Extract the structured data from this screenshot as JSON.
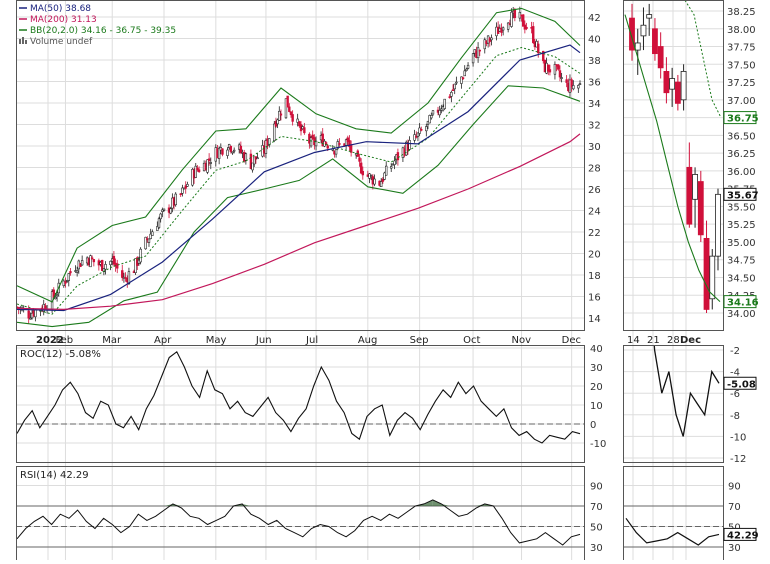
{
  "colors": {
    "ma50": "#1a237e",
    "ma200": "#c2185b",
    "bb": "#1b7a1b",
    "up": "#222222",
    "down": "#d0103a",
    "grid": "#dddddd",
    "rsi_fill": "#3f6b3f"
  },
  "main": {
    "legend": {
      "ma50": "MA(50) 38.68",
      "ma200": "MA(200) 31.13",
      "bb": "BB(20,2.0) 34.16 - 36.75 - 39.35",
      "volume": "Volume undef"
    },
    "year_label": "2022",
    "months": [
      "Feb",
      "Mar",
      "Apr",
      "May",
      "Jun",
      "Jul",
      "Aug",
      "Sep",
      "Oct",
      "Nov",
      "Dec"
    ],
    "y_ticks": [
      "14",
      "16",
      "18",
      "20",
      "22",
      "24",
      "26",
      "28",
      "30",
      "32",
      "34",
      "36",
      "38",
      "40",
      "42"
    ]
  },
  "zoom": {
    "y_ticks": [
      "34.00",
      "34.25",
      "34.50",
      "34.75",
      "35.00",
      "35.25",
      "35.50",
      "35.75",
      "36.00",
      "36.25",
      "36.50",
      "36.75",
      "37.00",
      "37.25",
      "37.50",
      "37.75",
      "38.00",
      "38.25"
    ],
    "x_labels": [
      "14",
      "21",
      "28",
      "Dec"
    ],
    "price_tag": "35.67",
    "ma_tag": "36.75",
    "bb_tag": "34.16"
  },
  "roc": {
    "label": "ROC(12) -5.08%",
    "y_ticks": [
      "40",
      "30",
      "20",
      "10",
      "0",
      "-10"
    ],
    "zoom_y_ticks": [
      "-2",
      "-4",
      "-6",
      "-8",
      "-10",
      "-12"
    ],
    "zoom_tag": "-5.08"
  },
  "rsi": {
    "label": "RSI(14) 42.29",
    "y_ticks": [
      "90",
      "70",
      "50",
      "30"
    ],
    "zoom_tag": "42.29"
  },
  "chart_data": [
    {
      "type": "candlestick",
      "x_range": [
        "2022-01-03",
        "2022-12-06"
      ],
      "ylim": [
        13,
        43
      ],
      "close_path": [
        [
          "2022-01-03",
          15.0
        ],
        [
          "2022-01-10",
          14.4
        ],
        [
          "2022-01-18",
          15.0
        ],
        [
          "2022-01-25",
          16.0
        ],
        [
          "2022-02-01",
          17.6
        ],
        [
          "2022-02-07",
          18.9
        ],
        [
          "2022-02-14",
          19.6
        ],
        [
          "2022-02-22",
          18.9
        ],
        [
          "2022-03-01",
          19.3
        ],
        [
          "2022-03-08",
          17.6
        ],
        [
          "2022-03-14",
          18.6
        ],
        [
          "2022-03-21",
          21.0
        ],
        [
          "2022-03-28",
          23.0
        ],
        [
          "2022-04-04",
          24.3
        ],
        [
          "2022-04-11",
          25.4
        ],
        [
          "2022-04-19",
          27.6
        ],
        [
          "2022-04-26",
          28.4
        ],
        [
          "2022-05-02",
          29.4
        ],
        [
          "2022-05-09",
          30.2
        ],
        [
          "2022-05-16",
          29.6
        ],
        [
          "2022-05-23",
          28.4
        ],
        [
          "2022-05-31",
          29.6
        ],
        [
          "2022-06-06",
          32.2
        ],
        [
          "2022-06-13",
          34.2
        ],
        [
          "2022-06-21",
          31.6
        ],
        [
          "2022-06-28",
          30.2
        ],
        [
          "2022-07-05",
          30.6
        ],
        [
          "2022-07-12",
          29.8
        ],
        [
          "2022-07-19",
          30.4
        ],
        [
          "2022-07-26",
          28.4
        ],
        [
          "2022-08-01",
          27.2
        ],
        [
          "2022-08-08",
          26.6
        ],
        [
          "2022-08-15",
          28.2
        ],
        [
          "2022-08-22",
          29.6
        ],
        [
          "2022-08-29",
          30.6
        ],
        [
          "2022-09-06",
          32.0
        ],
        [
          "2022-09-12",
          33.4
        ],
        [
          "2022-09-19",
          34.8
        ],
        [
          "2022-09-26",
          36.4
        ],
        [
          "2022-10-03",
          38.4
        ],
        [
          "2022-10-10",
          39.4
        ],
        [
          "2022-10-17",
          40.6
        ],
        [
          "2022-10-24",
          42.0
        ],
        [
          "2022-10-31",
          41.8
        ],
        [
          "2022-11-07",
          40.6
        ],
        [
          "2022-11-14",
          37.4
        ],
        [
          "2022-11-21",
          37.0
        ],
        [
          "2022-11-28",
          35.6
        ],
        [
          "2022-12-06",
          35.67
        ]
      ],
      "ma50_path": [
        [
          "2022-01-03",
          14.8
        ],
        [
          "2022-01-31",
          14.7
        ],
        [
          "2022-02-28",
          16.2
        ],
        [
          "2022-03-31",
          19.2
        ],
        [
          "2022-04-30",
          23.2
        ],
        [
          "2022-05-31",
          27.6
        ],
        [
          "2022-06-30",
          29.4
        ],
        [
          "2022-07-31",
          30.4
        ],
        [
          "2022-08-31",
          30.2
        ],
        [
          "2022-09-30",
          33.2
        ],
        [
          "2022-10-31",
          38.0
        ],
        [
          "2022-11-30",
          39.4
        ],
        [
          "2022-12-06",
          38.68
        ]
      ],
      "ma200_path": [
        [
          "2022-01-03",
          14.9
        ],
        [
          "2022-01-31",
          14.8
        ],
        [
          "2022-02-28",
          15.1
        ],
        [
          "2022-03-31",
          15.7
        ],
        [
          "2022-04-30",
          17.2
        ],
        [
          "2022-05-31",
          19.0
        ],
        [
          "2022-06-30",
          21.0
        ],
        [
          "2022-07-31",
          22.6
        ],
        [
          "2022-08-31",
          24.2
        ],
        [
          "2022-09-30",
          26.0
        ],
        [
          "2022-10-31",
          28.1
        ],
        [
          "2022-11-30",
          30.4
        ],
        [
          "2022-12-06",
          31.13
        ]
      ],
      "bb_upper_path": [
        [
          "2022-01-03",
          17.0
        ],
        [
          "2022-01-24",
          15.5
        ],
        [
          "2022-02-08",
          20.5
        ],
        [
          "2022-03-01",
          22.6
        ],
        [
          "2022-03-21",
          23.4
        ],
        [
          "2022-04-12",
          27.8
        ],
        [
          "2022-05-02",
          31.4
        ],
        [
          "2022-05-20",
          31.6
        ],
        [
          "2022-06-10",
          35.4
        ],
        [
          "2022-07-01",
          33.0
        ],
        [
          "2022-07-25",
          31.6
        ],
        [
          "2022-08-15",
          31.2
        ],
        [
          "2022-09-06",
          34.0
        ],
        [
          "2022-09-26",
          38.2
        ],
        [
          "2022-10-17",
          42.4
        ],
        [
          "2022-11-01",
          42.8
        ],
        [
          "2022-11-21",
          41.6
        ],
        [
          "2022-12-06",
          39.35
        ]
      ],
      "bb_lower_path": [
        [
          "2022-01-03",
          13.6
        ],
        [
          "2022-01-24",
          13.2
        ],
        [
          "2022-02-15",
          13.6
        ],
        [
          "2022-03-08",
          15.6
        ],
        [
          "2022-03-28",
          16.4
        ],
        [
          "2022-04-19",
          22.0
        ],
        [
          "2022-05-09",
          25.2
        ],
        [
          "2022-05-31",
          26.0
        ],
        [
          "2022-06-21",
          26.8
        ],
        [
          "2022-07-11",
          28.8
        ],
        [
          "2022-08-01",
          26.2
        ],
        [
          "2022-08-22",
          25.6
        ],
        [
          "2022-09-12",
          28.2
        ],
        [
          "2022-10-03",
          32.0
        ],
        [
          "2022-10-24",
          35.6
        ],
        [
          "2022-11-14",
          35.4
        ],
        [
          "2022-12-06",
          34.16
        ]
      ],
      "last_close": 35.67
    },
    {
      "type": "candlestick",
      "x_labels": [
        "14",
        "21",
        "28",
        "Dec"
      ],
      "ylim": [
        33.95,
        38.4
      ],
      "candles": [
        {
          "o": 38.15,
          "h": 38.35,
          "l": 37.55,
          "c": 37.7
        },
        {
          "o": 37.7,
          "h": 38.0,
          "l": 37.35,
          "c": 37.8
        },
        {
          "o": 37.9,
          "h": 38.3,
          "l": 37.7,
          "c": 38.05
        },
        {
          "o": 38.15,
          "h": 38.35,
          "l": 37.9,
          "c": 38.2
        },
        {
          "o": 38.0,
          "h": 38.15,
          "l": 37.55,
          "c": 37.65
        },
        {
          "o": 37.75,
          "h": 37.95,
          "l": 37.3,
          "c": 37.45
        },
        {
          "o": 37.4,
          "h": 37.6,
          "l": 36.95,
          "c": 37.1
        },
        {
          "o": 37.15,
          "h": 37.45,
          "l": 36.9,
          "c": 37.3
        },
        {
          "o": 37.25,
          "h": 37.35,
          "l": 36.85,
          "c": 36.95
        },
        {
          "o": 37.0,
          "h": 37.5,
          "l": 36.85,
          "c": 37.4
        },
        {
          "o": 36.05,
          "h": 36.4,
          "l": 35.2,
          "c": 35.25
        },
        {
          "o": 35.6,
          "h": 36.05,
          "l": 35.2,
          "c": 35.95
        },
        {
          "o": 35.85,
          "h": 36.0,
          "l": 35.0,
          "c": 35.1
        },
        {
          "o": 35.05,
          "h": 35.3,
          "l": 34.0,
          "c": 34.05
        },
        {
          "o": 34.2,
          "h": 34.9,
          "l": 34.05,
          "c": 34.8
        },
        {
          "o": 34.8,
          "h": 35.75,
          "l": 34.6,
          "c": 35.67
        }
      ],
      "bb_lower": [
        38.2,
        37.7,
        37.2,
        36.7,
        36.1,
        35.5,
        35.0,
        34.6,
        34.3,
        34.16
      ],
      "bb_upper": [
        38.4,
        38.2,
        37.6,
        37.0,
        36.75
      ]
    },
    {
      "type": "line",
      "name": "ROC(12)",
      "ylim": [
        -14,
        40
      ],
      "values": [
        -5,
        2,
        7,
        -2,
        4,
        10,
        18,
        22,
        16,
        6,
        3,
        12,
        10,
        0,
        -2,
        4,
        -3,
        8,
        15,
        25,
        35,
        38,
        30,
        20,
        14,
        28,
        18,
        16,
        8,
        12,
        6,
        4,
        9,
        14,
        6,
        2,
        -4,
        3,
        8,
        20,
        30,
        23,
        12,
        6,
        -5,
        -8,
        4,
        8,
        10,
        -6,
        2,
        6,
        3,
        -3,
        5,
        12,
        18,
        14,
        22,
        16,
        20,
        12,
        8,
        4,
        8,
        -2,
        -6,
        -4,
        -8,
        -10,
        -6,
        -7,
        -8,
        -4,
        -5.08
      ]
    },
    {
      "type": "line",
      "name": "RSI(14)",
      "ylim": [
        20,
        100
      ],
      "overbought": 70,
      "oversold": 30,
      "values": [
        38,
        48,
        55,
        60,
        52,
        62,
        58,
        66,
        55,
        48,
        58,
        52,
        44,
        50,
        62,
        56,
        60,
        66,
        72,
        68,
        60,
        58,
        52,
        56,
        60,
        70,
        72,
        62,
        58,
        52,
        56,
        48,
        44,
        40,
        48,
        52,
        50,
        44,
        40,
        46,
        56,
        60,
        56,
        62,
        58,
        64,
        70,
        72,
        76,
        72,
        66,
        60,
        62,
        68,
        72,
        70,
        58,
        44,
        34,
        36,
        38,
        44,
        38,
        32,
        40,
        42.29
      ]
    }
  ]
}
